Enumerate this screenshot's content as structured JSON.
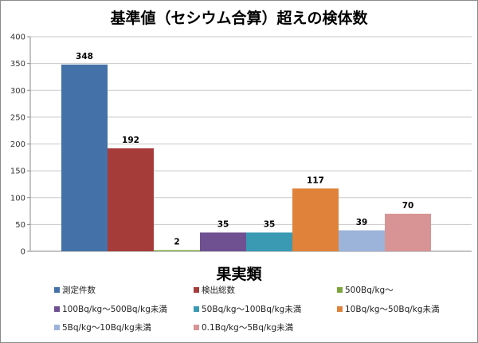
{
  "chart_data": {
    "type": "bar",
    "title": "基準値（セシウム合算）超えの検体数",
    "xlabel": "果実類",
    "ylabel": "",
    "ylim": [
      0,
      400
    ],
    "yticks": [
      0,
      50,
      100,
      150,
      200,
      250,
      300,
      350,
      400
    ],
    "grid": true,
    "legend_position": "bottom",
    "series": [
      {
        "name": "測定件数",
        "value": 348,
        "color": "#4472a8"
      },
      {
        "name": "検出総数",
        "value": 192,
        "color": "#a63c3a"
      },
      {
        "name": "500Bq/kg～",
        "value": 2,
        "color": "#7ea53c"
      },
      {
        "name": "100Bq/kg～500Bq/kg未満",
        "value": 35,
        "color": "#6f5192"
      },
      {
        "name": "50Bq/kg～100Bq/kg未満",
        "value": 35,
        "color": "#3a9ab3"
      },
      {
        "name": "10Bq/kg～50Bq/kg未満",
        "value": 117,
        "color": "#e0823a"
      },
      {
        "name": "5Bq/kg～10Bq/kg未満",
        "value": 39,
        "color": "#9cb3da"
      },
      {
        "name": "0.1Bq/kg～5Bq/kg未満",
        "value": 70,
        "color": "#d89494"
      }
    ]
  }
}
